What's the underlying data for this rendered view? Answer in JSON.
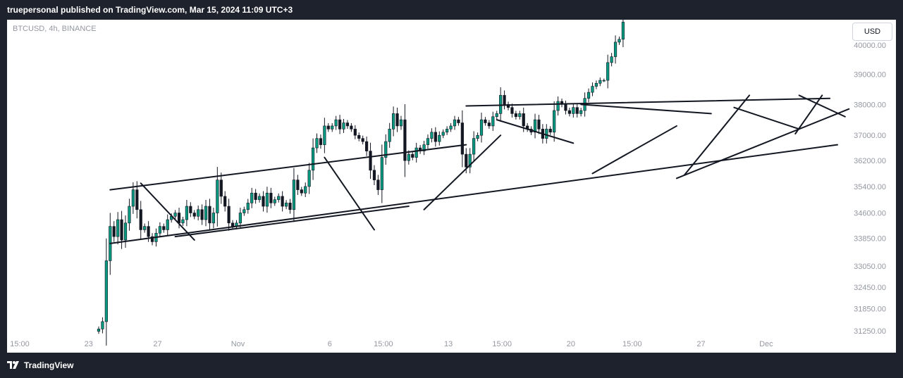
{
  "header": {
    "published": "truepersonal published on TradingView.com, Mar 15, 2024 11:09 UTC+3"
  },
  "symbol_line": "BTCUSD, 4h, BINANCE",
  "currency_button": "USD",
  "footer": {
    "brand": "TradingView",
    "logo_icon": "tradingview-logo-icon"
  },
  "colors": {
    "page_bg": "#1e222d",
    "chart_bg": "#ffffff",
    "up": "#089981",
    "down": "#131722",
    "trendline": "#131722",
    "axis_text": "#9598a1"
  },
  "chart_data": {
    "type": "candlestick",
    "title": "BTCUSD, 4h, BINANCE",
    "x_ticks": [
      {
        "label": "15:00",
        "idx": 0
      },
      {
        "label": "23",
        "idx": 18
      },
      {
        "label": "27",
        "idx": 36
      },
      {
        "label": "Nov",
        "idx": 57
      },
      {
        "label": "6",
        "idx": 81
      },
      {
        "label": "15:00",
        "idx": 95
      },
      {
        "label": "13",
        "idx": 112
      },
      {
        "label": "15:00",
        "idx": 126
      },
      {
        "label": "20",
        "idx": 144
      },
      {
        "label": "15:00",
        "idx": 160
      },
      {
        "label": "27",
        "idx": 178
      },
      {
        "label": "Dec",
        "idx": 195
      }
    ],
    "y_ticks": [
      40000,
      39000,
      38000,
      37000,
      36200,
      35400,
      34600,
      33850,
      33050,
      32450,
      31850,
      31250
    ],
    "y_tick_labels": [
      "40000.00",
      "39000.00",
      "38000.00",
      "37000.00",
      "36200.00",
      "35400.00",
      "34600.00",
      "33850.00",
      "33050.00",
      "32450.00",
      "31850.00",
      "31250.00"
    ],
    "y_scale": "log",
    "ylim": [
      31000,
      41000
    ],
    "grid": false,
    "close_series": [
      31300,
      31500,
      33200,
      34200,
      33900,
      34400,
      33800,
      34300,
      34800,
      35300,
      34700,
      34100,
      34200,
      33900,
      33750,
      34000,
      34200,
      34100,
      34400,
      34500,
      34600,
      34300,
      34400,
      34800,
      34600,
      34500,
      34700,
      34400,
      34800,
      34300,
      34600,
      35600,
      35100,
      34800,
      34300,
      34200,
      34300,
      34600,
      34700,
      34900,
      35200,
      35000,
      35100,
      34800,
      35200,
      34900,
      35000,
      35100,
      34800,
      34900,
      34700,
      35600,
      35300,
      35200,
      35400,
      35900,
      36600,
      36900,
      36700,
      37300,
      37200,
      37300,
      37500,
      37200,
      37400,
      37300,
      37200,
      37000,
      36900,
      36800,
      36500,
      35900,
      35600,
      35300,
      36300,
      36800,
      37200,
      37700,
      37300,
      37500,
      36200,
      36400,
      36300,
      36600,
      36500,
      36700,
      36900,
      37100,
      36800,
      37000,
      37100,
      37200,
      37300,
      37500,
      37400,
      36400,
      36000,
      36400,
      36900,
      37000,
      37500,
      37400,
      37300,
      37600,
      37700,
      38300,
      38000,
      37900,
      37700,
      37600,
      37700,
      37300,
      37200,
      37100,
      37500,
      37200,
      36900,
      37200,
      37100,
      37800,
      38100,
      38000,
      37800,
      37700,
      37900,
      37700,
      37800,
      38200,
      38400,
      38600,
      38700,
      38800,
      38800,
      39400,
      39600,
      40100,
      40200,
      40800
    ],
    "trendlines": [
      {
        "p1": [
          3,
          35300
        ],
        "p2": [
          96,
          36700
        ]
      },
      {
        "p1": [
          96,
          37950
        ],
        "p2": [
          191,
          38200
        ]
      },
      {
        "p1": [
          3,
          33700
        ],
        "p2": [
          193,
          36700
        ]
      },
      {
        "p1": [
          11,
          35500
        ],
        "p2": [
          25,
          33800
        ]
      },
      {
        "p1": [
          20,
          33900
        ],
        "p2": [
          81,
          34800
        ]
      },
      {
        "p1": [
          59,
          36300
        ],
        "p2": [
          72,
          34100
        ]
      },
      {
        "p1": [
          85,
          34700
        ],
        "p2": [
          105,
          37000
        ]
      },
      {
        "p1": [
          104,
          37500
        ],
        "p2": [
          124,
          36750
        ]
      },
      {
        "p1": [
          126,
          38000
        ],
        "p2": [
          160,
          37700
        ]
      },
      {
        "p1": [
          129,
          35800
        ],
        "p2": [
          151,
          37300
        ]
      },
      {
        "p1": [
          153,
          35750
        ],
        "p2": [
          170,
          38300
        ]
      },
      {
        "p1": [
          151,
          35650
        ],
        "p2": [
          196,
          37850
        ]
      },
      {
        "p1": [
          166,
          37900
        ],
        "p2": [
          183,
          37200
        ]
      },
      {
        "p1": [
          182,
          37050
        ],
        "p2": [
          189,
          38300
        ]
      },
      {
        "p1": [
          183,
          38300
        ],
        "p2": [
          195,
          37600
        ]
      }
    ]
  }
}
